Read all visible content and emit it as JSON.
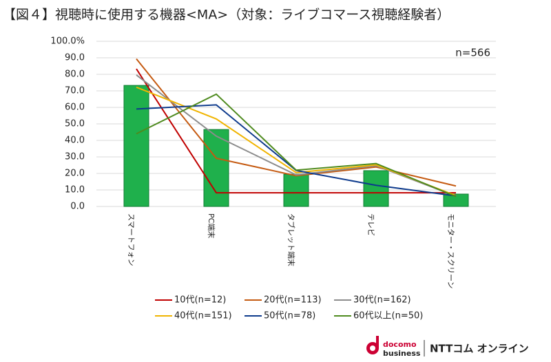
{
  "chart_data": {
    "type": "bar",
    "title": "【図４】視聴時に使用する機器<MA>（対象：ライブコマース視聴経験者）",
    "annotation": "n=566",
    "categories": [
      "スマートフォン",
      "PC端末",
      "タブレット端末",
      "テレビ",
      "モニター・スクリーン"
    ],
    "values": [
      73.3,
      46.6,
      19.5,
      21.7,
      7.5
    ],
    "color": "#1fb04c",
    "series": [
      {
        "name": "10代(n=12)",
        "type": "line",
        "color": "#c00000",
        "values": [
          83.3,
          8.3,
          8.3,
          8.3,
          8.3
        ]
      },
      {
        "name": "20代(n=113)",
        "type": "line",
        "color": "#c55a11",
        "values": [
          89.4,
          29.2,
          18.6,
          23.9,
          12.4
        ]
      },
      {
        "name": "30代(n=162)",
        "type": "line",
        "color": "#8c8c8c",
        "values": [
          79.6,
          42.6,
          19.1,
          24.7,
          6.2
        ]
      },
      {
        "name": "40代(n=151)",
        "type": "line",
        "color": "#f0b400",
        "values": [
          72.2,
          53.0,
          20.5,
          25.2,
          6.6
        ]
      },
      {
        "name": "50代(n=78)",
        "type": "line",
        "color": "#0d3a8c",
        "values": [
          59.0,
          61.5,
          21.8,
          12.8,
          6.4
        ]
      },
      {
        "name": "60代以上(n=50)",
        "type": "line",
        "color": "#4e8a1e",
        "values": [
          44.0,
          68.0,
          22.0,
          26.0,
          6.0
        ]
      }
    ],
    "ylim": [
      0,
      100
    ],
    "yticks": [
      {
        "value": 0,
        "label": "0.0"
      },
      {
        "value": 10,
        "label": "10.0"
      },
      {
        "value": 20,
        "label": "20.0"
      },
      {
        "value": 30,
        "label": "30.0"
      },
      {
        "value": 40,
        "label": "40.0"
      },
      {
        "value": 50,
        "label": "50.0"
      },
      {
        "value": 60,
        "label": "60.0"
      },
      {
        "value": 70,
        "label": "70.0"
      },
      {
        "value": 80,
        "label": "80.0"
      },
      {
        "value": 90,
        "label": "90.0"
      },
      {
        "value": 100,
        "label": "100.0%"
      }
    ],
    "grid": true
  },
  "footer": {
    "logo_top": "docomo",
    "logo_bottom": "business",
    "brand": "NTTコム オンライン"
  }
}
